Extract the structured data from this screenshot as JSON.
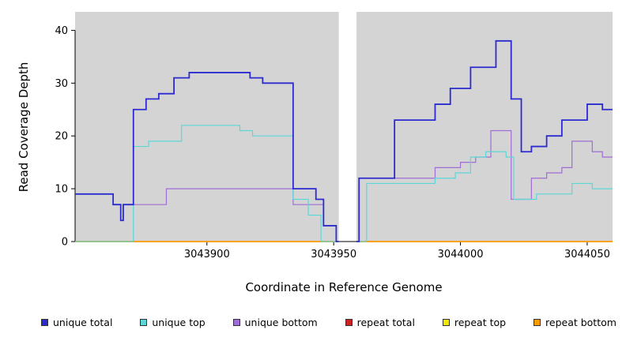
{
  "chart_data": {
    "type": "line",
    "title": "",
    "xlabel": "Coordinate in Reference Genome",
    "ylabel": "Read Coverage Depth",
    "xlim": [
      3043848,
      3044060
    ],
    "ylim": [
      0,
      43.5
    ],
    "x_ticks": [
      3043900,
      3043950,
      3044000,
      3044050
    ],
    "y_ticks": [
      0,
      10,
      20,
      30,
      40
    ],
    "gap_x": [
      3043952,
      3043959
    ],
    "panel_bg": "#d4d4d4",
    "axis_color": "#000000",
    "legend_position": "bottom",
    "grid": false,
    "series": [
      {
        "name": "repeat total",
        "color": "#cc2222",
        "width": 1.2,
        "segments": [
          {
            "end": 3043952,
            "points": [
              [
                3043848,
                0
              ]
            ]
          },
          {
            "end": 3044060,
            "points": [
              [
                3043959,
                0
              ]
            ]
          }
        ]
      },
      {
        "name": "repeat top",
        "color": "#f0e800",
        "width": 1.2,
        "segments": [
          {
            "end": 3043952,
            "points": [
              [
                3043848,
                0
              ]
            ]
          },
          {
            "end": 3044060,
            "points": [
              [
                3043959,
                0
              ]
            ]
          }
        ]
      },
      {
        "name": "repeat bottom",
        "color": "#ff9d00",
        "width": 1.8,
        "segments": [
          {
            "end": 3043952,
            "points": [
              [
                3043848,
                0
              ]
            ]
          },
          {
            "end": 3044060,
            "points": [
              [
                3043959,
                0
              ]
            ]
          }
        ]
      },
      {
        "name": "unique bottom",
        "color": "#a06cd5",
        "width": 1.2,
        "segments": [
          {
            "end": 3043952,
            "points": [
              [
                3043848,
                9
              ],
              [
                3043863,
                7
              ],
              [
                3043866,
                4
              ],
              [
                3043867,
                7
              ],
              [
                3043871,
                7
              ],
              [
                3043884,
                10
              ],
              [
                3043934,
                7
              ],
              [
                3043946,
                3
              ],
              [
                3043951,
                0
              ]
            ]
          },
          {
            "end": 3044060,
            "points": [
              [
                3043959,
                0
              ],
              [
                3043960,
                12
              ],
              [
                3043990,
                14
              ],
              [
                3044000,
                15
              ],
              [
                3044006,
                16
              ],
              [
                3044012,
                21
              ],
              [
                3044020,
                8
              ],
              [
                3044028,
                12
              ],
              [
                3044034,
                13
              ],
              [
                3044040,
                14
              ],
              [
                3044044,
                19
              ],
              [
                3044052,
                17
              ],
              [
                3044056,
                16
              ]
            ]
          }
        ]
      },
      {
        "name": "unique top",
        "color": "#5cd6d6",
        "width": 1.2,
        "segments": [
          {
            "end": 3043952,
            "points": [
              [
                3043848,
                0
              ],
              [
                3043871,
                18
              ],
              [
                3043877,
                19
              ],
              [
                3043890,
                22
              ],
              [
                3043913,
                21
              ],
              [
                3043918,
                20
              ],
              [
                3043934,
                8
              ],
              [
                3043940,
                5
              ],
              [
                3043945,
                0
              ]
            ]
          },
          {
            "end": 3044060,
            "points": [
              [
                3043959,
                0
              ],
              [
                3043963,
                11
              ],
              [
                3043990,
                12
              ],
              [
                3043998,
                13
              ],
              [
                3044004,
                16
              ],
              [
                3044010,
                17
              ],
              [
                3044018,
                16
              ],
              [
                3044021,
                8
              ],
              [
                3044030,
                9
              ],
              [
                3044044,
                11
              ],
              [
                3044052,
                10
              ]
            ]
          }
        ]
      },
      {
        "name": "unique total",
        "color": "#2b2bd0",
        "width": 1.8,
        "segments": [
          {
            "end": 3043952,
            "points": [
              [
                3043848,
                9
              ],
              [
                3043863,
                7
              ],
              [
                3043866,
                4
              ],
              [
                3043867,
                7
              ],
              [
                3043871,
                25
              ],
              [
                3043876,
                27
              ],
              [
                3043881,
                28
              ],
              [
                3043887,
                31
              ],
              [
                3043893,
                32
              ],
              [
                3043917,
                31
              ],
              [
                3043922,
                30
              ],
              [
                3043934,
                10
              ],
              [
                3043943,
                8
              ],
              [
                3043946,
                3
              ],
              [
                3043951,
                0
              ]
            ]
          },
          {
            "end": 3044060,
            "points": [
              [
                3043959,
                0
              ],
              [
                3043960,
                12
              ],
              [
                3043974,
                23
              ],
              [
                3043990,
                26
              ],
              [
                3043996,
                29
              ],
              [
                3044004,
                33
              ],
              [
                3044014,
                38
              ],
              [
                3044020,
                27
              ],
              [
                3044024,
                17
              ],
              [
                3044028,
                18
              ],
              [
                3044034,
                20
              ],
              [
                3044040,
                23
              ],
              [
                3044050,
                26
              ],
              [
                3044056,
                25
              ]
            ]
          }
        ]
      }
    ],
    "legend": [
      {
        "label": "unique total",
        "color": "#2b2bd0"
      },
      {
        "label": "unique top",
        "color": "#5cd6d6"
      },
      {
        "label": "unique bottom",
        "color": "#a06cd5"
      },
      {
        "label": "repeat total",
        "color": "#cc2222"
      },
      {
        "label": "repeat top",
        "color": "#f0e800"
      },
      {
        "label": "repeat bottom",
        "color": "#ff9d00"
      }
    ]
  }
}
